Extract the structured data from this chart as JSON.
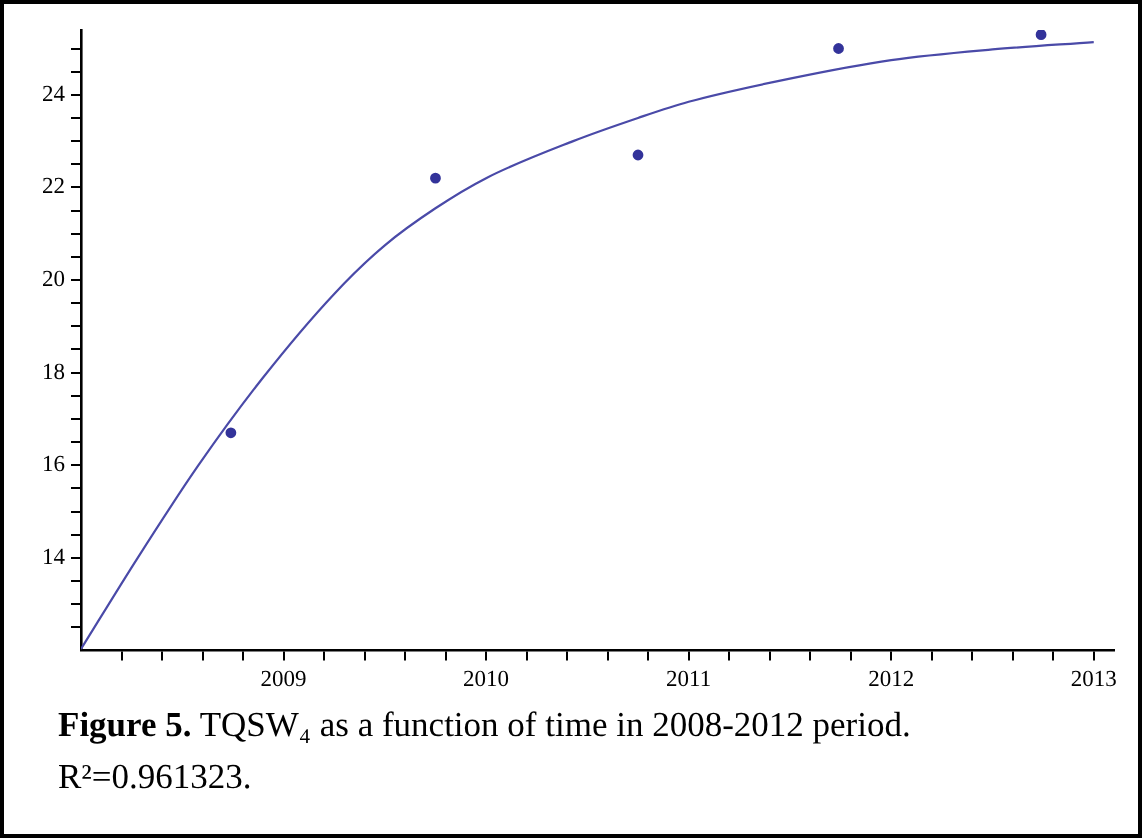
{
  "chart_data": {
    "type": "scatter",
    "xlim": [
      2008,
      2013.1
    ],
    "xticks": [
      {
        "value": 2008.2,
        "label": null
      },
      {
        "value": 2008.4,
        "label": null
      },
      {
        "value": 2008.6,
        "label": null
      },
      {
        "value": 2008.8,
        "label": null
      },
      2009,
      {
        "value": 2009.2,
        "label": null
      },
      {
        "value": 2009.4,
        "label": null
      },
      {
        "value": 2009.6,
        "label": null
      },
      {
        "value": 2009.8,
        "label": null
      },
      2010,
      {
        "value": 2010.2,
        "label": null
      },
      {
        "value": 2010.4,
        "label": null
      },
      {
        "value": 2010.6,
        "label": null
      },
      {
        "value": 2010.8,
        "label": null
      },
      2011,
      {
        "value": 2011.2,
        "label": null
      },
      {
        "value": 2011.4,
        "label": null
      },
      {
        "value": 2011.6,
        "label": null
      },
      {
        "value": 2011.8,
        "label": null
      },
      2012,
      {
        "value": 2012.2,
        "label": null
      },
      {
        "value": 2012.4,
        "label": null
      },
      {
        "value": 2012.6,
        "label": null
      },
      {
        "value": 2012.8,
        "label": null
      },
      2013
    ],
    "ylim": [
      12,
      25.4
    ],
    "yticks": [
      {
        "value": 12.5,
        "label": null
      },
      {
        "value": 13,
        "label": null
      },
      {
        "value": 13.5,
        "label": null
      },
      14,
      {
        "value": 14.5,
        "label": null
      },
      {
        "value": 15,
        "label": null
      },
      {
        "value": 15.5,
        "label": null
      },
      16,
      {
        "value": 16.5,
        "label": null
      },
      {
        "value": 17,
        "label": null
      },
      {
        "value": 17.5,
        "label": null
      },
      18,
      {
        "value": 18.5,
        "label": null
      },
      {
        "value": 19,
        "label": null
      },
      {
        "value": 19.5,
        "label": null
      },
      20,
      {
        "value": 20.5,
        "label": null
      },
      {
        "value": 21,
        "label": null
      },
      {
        "value": 21.5,
        "label": null
      },
      22,
      {
        "value": 22.5,
        "label": null
      },
      {
        "value": 23,
        "label": null
      },
      {
        "value": 23.5,
        "label": null
      },
      24,
      {
        "value": 24.5,
        "label": null
      },
      {
        "value": 25,
        "label": null
      }
    ],
    "grid": false,
    "series": [
      {
        "type": "scatter",
        "marker": "circle",
        "color": "#33339a",
        "x": [
          2008.74,
          2009.75,
          2010.75,
          2011.74,
          2012.74
        ],
        "values": [
          16.7,
          22.2,
          22.7,
          25.0,
          25.3
        ]
      },
      {
        "type": "line",
        "line_style": "solid",
        "color": "#4a4aa8",
        "x": [
          2008,
          2008.28,
          2008.58,
          2008.9,
          2009.25,
          2009.5,
          2009.75,
          2010,
          2010.43,
          2010.75,
          2011,
          2011.5,
          2012,
          2012.5,
          2013
        ],
        "values": [
          12.03,
          14,
          16,
          17.9,
          19.7,
          20.75,
          21.55,
          22.2,
          23.0,
          23.5,
          23.85,
          24.35,
          24.75,
          24.98,
          25.14
        ]
      }
    ],
    "annotations": [
      "Figure 5.",
      "TQSW₄ as a function of time in 2008-2012 period. R²=0.961323."
    ]
  }
}
